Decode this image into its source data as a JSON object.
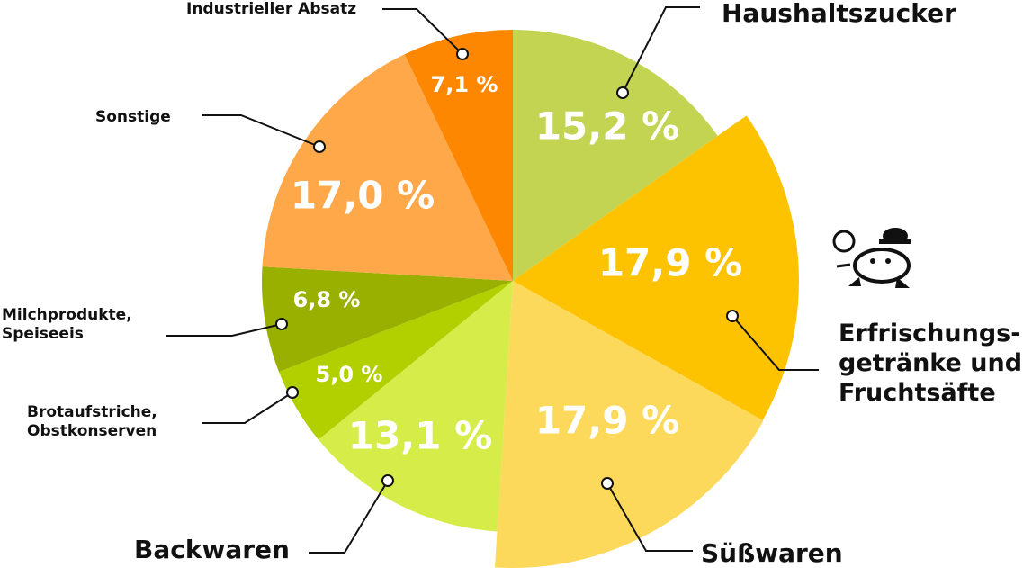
{
  "chart_data": {
    "type": "pie",
    "categories": [
      "Haushaltszucker",
      "Erfrischungs-\ngetränke und\nFruchtsäfte",
      "Süßwaren",
      "Backwaren",
      "Brotaufstriche,\nObstkonserven",
      "Milchprodukte,\nSpeiseeis",
      "Sonstige",
      "Industrieller Absatz"
    ],
    "values": [
      15.2,
      17.9,
      17.9,
      13.1,
      5.0,
      6.8,
      17.0,
      7.1
    ],
    "value_labels": [
      "15,2 %",
      "17,9 %",
      "17,9 %",
      "13,1 %",
      "5,0 %",
      "6,8 %",
      "17,0 %",
      "7,1 %"
    ],
    "colors": [
      "#c2d451",
      "#fdc300",
      "#fcd95a",
      "#d6ec48",
      "#b2cf00",
      "#9ab000",
      "#fea84a",
      "#fd8700"
    ]
  }
}
